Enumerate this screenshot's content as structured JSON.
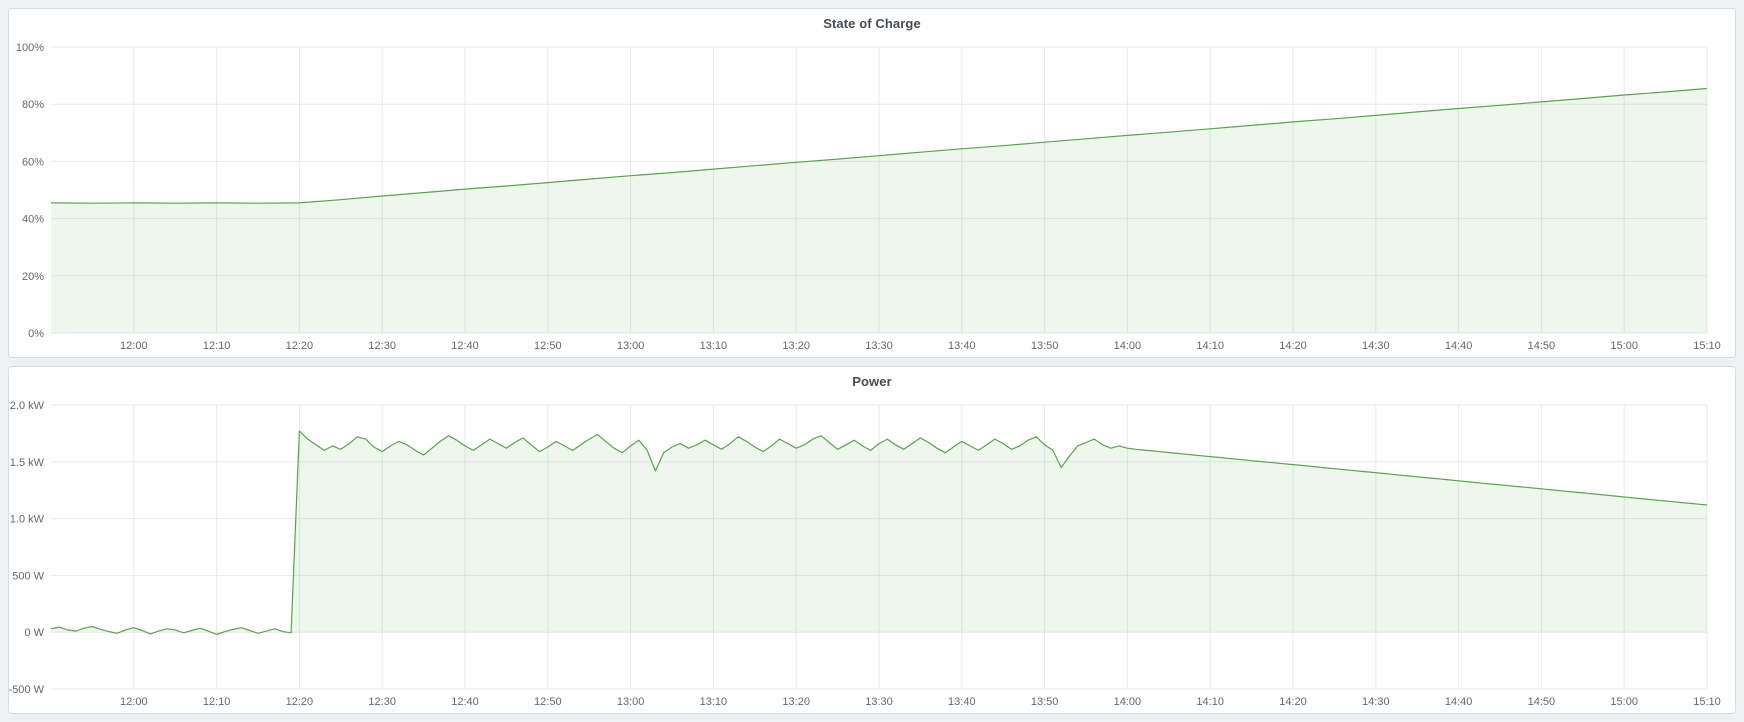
{
  "page": {
    "background": "#eef0f2",
    "panel_background": "#ffffff",
    "panel_border": "#d8dbdf"
  },
  "chart_data": [
    {
      "type": "area",
      "title": "State of Charge",
      "xlabel": "",
      "ylabel": "",
      "x0_time": "11:50",
      "x_range": [
        0,
        200
      ],
      "ylim": [
        0,
        100
      ],
      "grid": true,
      "legend": "none",
      "colors": {
        "line": "#5ca351",
        "fill": "rgba(115,191,105,0.13)",
        "grid": "#e8e9eb"
      },
      "xticks": [
        {
          "t": 10,
          "label": "12:00"
        },
        {
          "t": 20,
          "label": "12:10"
        },
        {
          "t": 30,
          "label": "12:20"
        },
        {
          "t": 40,
          "label": "12:30"
        },
        {
          "t": 50,
          "label": "12:40"
        },
        {
          "t": 60,
          "label": "12:50"
        },
        {
          "t": 70,
          "label": "13:00"
        },
        {
          "t": 80,
          "label": "13:10"
        },
        {
          "t": 90,
          "label": "13:20"
        },
        {
          "t": 100,
          "label": "13:30"
        },
        {
          "t": 110,
          "label": "13:40"
        },
        {
          "t": 120,
          "label": "13:50"
        },
        {
          "t": 130,
          "label": "14:00"
        },
        {
          "t": 140,
          "label": "14:10"
        },
        {
          "t": 150,
          "label": "14:20"
        },
        {
          "t": 160,
          "label": "14:30"
        },
        {
          "t": 170,
          "label": "14:40"
        },
        {
          "t": 180,
          "label": "14:50"
        },
        {
          "t": 190,
          "label": "15:00"
        },
        {
          "t": 200,
          "label": "15:10"
        }
      ],
      "yticks": [
        {
          "v": 0,
          "label": "0%"
        },
        {
          "v": 20,
          "label": "20%"
        },
        {
          "v": 40,
          "label": "40%"
        },
        {
          "v": 60,
          "label": "60%"
        },
        {
          "v": 80,
          "label": "80%"
        },
        {
          "v": 100,
          "label": "100%"
        }
      ],
      "series": [
        {
          "name": "State of Charge",
          "unit": "%",
          "x0": 0,
          "x_step": 5,
          "values": [
            45.5,
            45.4,
            45.5,
            45.4,
            45.5,
            45.4,
            45.5,
            46.6,
            47.9,
            49.1,
            50.3,
            51.4,
            52.6,
            53.8,
            55.0,
            56.1,
            57.3,
            58.5,
            59.7,
            60.8,
            62.0,
            63.2,
            64.4,
            65.5,
            66.7,
            67.9,
            69.1,
            70.2,
            71.4,
            72.6,
            73.8,
            74.9,
            76.1,
            77.3,
            78.5,
            79.6,
            80.8,
            82.0,
            83.2,
            84.3,
            85.5
          ]
        }
      ]
    },
    {
      "type": "area",
      "title": "Power",
      "xlabel": "",
      "ylabel": "",
      "x0_time": "11:50",
      "x_range": [
        0,
        200
      ],
      "ylim": [
        -500,
        2000
      ],
      "grid": true,
      "legend": "none",
      "colors": {
        "line": "#5ca351",
        "fill": "rgba(115,191,105,0.13)",
        "grid": "#e8e9eb"
      },
      "xticks": [
        {
          "t": 10,
          "label": "12:00"
        },
        {
          "t": 20,
          "label": "12:10"
        },
        {
          "t": 30,
          "label": "12:20"
        },
        {
          "t": 40,
          "label": "12:30"
        },
        {
          "t": 50,
          "label": "12:40"
        },
        {
          "t": 60,
          "label": "12:50"
        },
        {
          "t": 70,
          "label": "13:00"
        },
        {
          "t": 80,
          "label": "13:10"
        },
        {
          "t": 90,
          "label": "13:20"
        },
        {
          "t": 100,
          "label": "13:30"
        },
        {
          "t": 110,
          "label": "13:40"
        },
        {
          "t": 120,
          "label": "13:50"
        },
        {
          "t": 130,
          "label": "14:00"
        },
        {
          "t": 140,
          "label": "14:10"
        },
        {
          "t": 150,
          "label": "14:20"
        },
        {
          "t": 160,
          "label": "14:30"
        },
        {
          "t": 170,
          "label": "14:40"
        },
        {
          "t": 180,
          "label": "14:50"
        },
        {
          "t": 190,
          "label": "15:00"
        },
        {
          "t": 200,
          "label": "15:10"
        }
      ],
      "yticks": [
        {
          "v": -500,
          "label": "-500 W"
        },
        {
          "v": 0,
          "label": "0 W"
        },
        {
          "v": 500,
          "label": "500 W"
        },
        {
          "v": 1000,
          "label": "1.0 kW"
        },
        {
          "v": 1500,
          "label": "1.5 kW"
        },
        {
          "v": 2000,
          "label": "2.0 kW"
        }
      ],
      "series": [
        {
          "name": "Power",
          "unit": "W",
          "x0": 0,
          "x_step": 1,
          "values": [
            30,
            45,
            20,
            10,
            35,
            50,
            25,
            5,
            -10,
            20,
            40,
            15,
            -15,
            10,
            30,
            20,
            -5,
            15,
            35,
            10,
            -20,
            5,
            25,
            40,
            15,
            -10,
            10,
            30,
            5,
            -5,
            1770,
            1700,
            1650,
            1600,
            1640,
            1610,
            1660,
            1720,
            1700,
            1630,
            1590,
            1640,
            1680,
            1650,
            1600,
            1560,
            1620,
            1680,
            1730,
            1690,
            1640,
            1600,
            1650,
            1700,
            1660,
            1620,
            1670,
            1710,
            1650,
            1590,
            1630,
            1680,
            1640,
            1600,
            1650,
            1700,
            1740,
            1680,
            1620,
            1580,
            1640,
            1690,
            1600,
            1420,
            1580,
            1630,
            1660,
            1620,
            1650,
            1690,
            1650,
            1610,
            1660,
            1720,
            1680,
            1630,
            1590,
            1640,
            1700,
            1660,
            1620,
            1650,
            1700,
            1730,
            1670,
            1610,
            1650,
            1690,
            1640,
            1600,
            1660,
            1700,
            1650,
            1610,
            1660,
            1710,
            1670,
            1620,
            1580,
            1630,
            1680,
            1640,
            1600,
            1650,
            1700,
            1660,
            1610,
            1640,
            1690,
            1720,
            1650,
            1600,
            1450,
            1550,
            1640,
            1670,
            1700,
            1650,
            1620,
            1640,
            1620,
            1610,
            1603,
            1596,
            1589,
            1582,
            1574,
            1567,
            1560,
            1553,
            1546,
            1539,
            1532,
            1525,
            1518,
            1510,
            1503,
            1496,
            1489,
            1482,
            1475,
            1468,
            1461,
            1454,
            1446,
            1439,
            1432,
            1425,
            1418,
            1411,
            1404,
            1397,
            1390,
            1382,
            1375,
            1368,
            1361,
            1354,
            1347,
            1340,
            1333,
            1326,
            1318,
            1311,
            1304,
            1297,
            1290,
            1283,
            1276,
            1269,
            1262,
            1254,
            1247,
            1240,
            1233,
            1226,
            1219,
            1212,
            1205,
            1198,
            1190,
            1183,
            1176,
            1169,
            1162,
            1155,
            1148,
            1141,
            1134,
            1127,
            1120
          ]
        }
      ]
    }
  ]
}
